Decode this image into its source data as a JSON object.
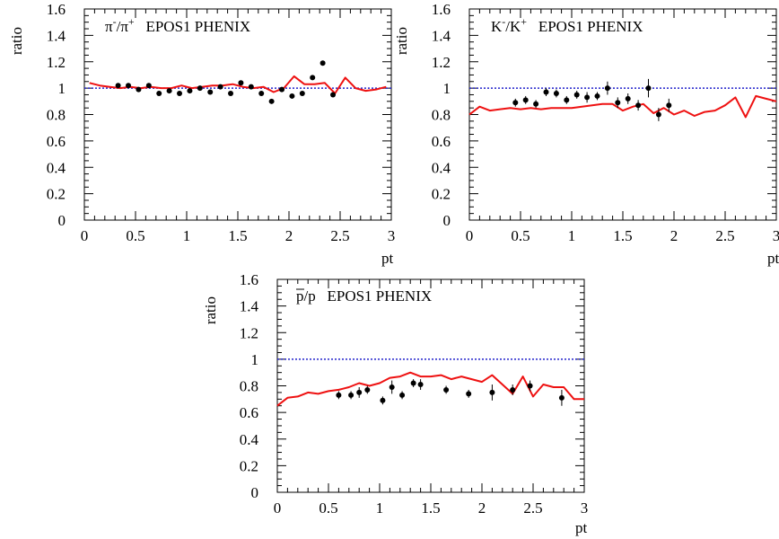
{
  "chart_data": [
    {
      "type": "line",
      "title": "π⁻/π⁺  EPOS1  PHENIX",
      "title_parts": {
        "num_base": "π",
        "num_sup": "-",
        "slash": "/",
        "den_base": "π",
        "den_sup": "+",
        "label": "EPOS1  PHENIX"
      },
      "xlabel": "pt",
      "ylabel": "ratio",
      "xlim": [
        0,
        3
      ],
      "ylim": [
        0,
        1.6
      ],
      "x_ticks": [
        "0",
        "0.5",
        "1",
        "1.5",
        "2",
        "2.5",
        "3"
      ],
      "y_ticks": [
        "0",
        "0.2",
        "0.4",
        "0.6",
        "0.8",
        "1",
        "1.2",
        "1.4",
        "1.6"
      ],
      "reference_line": 1,
      "series": [
        {
          "kind": "line",
          "color": "#ee1111",
          "x": [
            0.05,
            0.15,
            0.25,
            0.35,
            0.45,
            0.55,
            0.65,
            0.75,
            0.85,
            0.95,
            1.05,
            1.15,
            1.25,
            1.35,
            1.45,
            1.55,
            1.65,
            1.75,
            1.85,
            1.95,
            2.05,
            2.15,
            2.25,
            2.35,
            2.45,
            2.55,
            2.65,
            2.75,
            2.85,
            2.95
          ],
          "y": [
            1.04,
            1.02,
            1.01,
            1.0,
            1.01,
            1.0,
            1.01,
            1.0,
            1.0,
            1.02,
            1.0,
            1.01,
            1.02,
            1.02,
            1.03,
            1.01,
            1.0,
            1.01,
            0.97,
            1.0,
            1.09,
            1.03,
            1.03,
            1.04,
            0.96,
            1.08,
            1.0,
            0.98,
            0.99,
            1.01
          ]
        },
        {
          "kind": "points",
          "color": "#000000",
          "x": [
            0.33,
            0.43,
            0.53,
            0.63,
            0.73,
            0.83,
            0.93,
            1.03,
            1.13,
            1.23,
            1.33,
            1.43,
            1.53,
            1.63,
            1.73,
            1.83,
            1.93,
            2.03,
            2.13,
            2.23,
            2.33,
            2.43
          ],
          "y": [
            1.02,
            1.02,
            0.99,
            1.02,
            0.96,
            0.98,
            0.96,
            0.98,
            1.0,
            0.97,
            1.01,
            0.96,
            1.04,
            1.01,
            0.96,
            0.9,
            0.99,
            0.94,
            0.96,
            1.08,
            1.19,
            0.95
          ],
          "err": [
            0.01,
            0.01,
            0.01,
            0.01,
            0.01,
            0.01,
            0.01,
            0.01,
            0.01,
            0.01,
            0.01,
            0.01,
            0.01,
            0.01,
            0.01,
            0.01,
            0.01,
            0.01,
            0.01,
            0.01,
            0.01,
            0.01
          ]
        }
      ]
    },
    {
      "type": "line",
      "title": "K⁻/K⁺  EPOS1  PHENIX",
      "title_parts": {
        "num_base": "K",
        "num_sup": "-",
        "slash": "/",
        "den_base": "K",
        "den_sup": "+",
        "label": "EPOS1  PHENIX"
      },
      "xlabel": "pt",
      "ylabel": "ratio",
      "xlim": [
        0,
        3
      ],
      "ylim": [
        0,
        1.6
      ],
      "x_ticks": [
        "0",
        "0.5",
        "1",
        "1.5",
        "2",
        "2.5",
        "3"
      ],
      "y_ticks": [
        "0",
        "0.2",
        "0.4",
        "0.6",
        "0.8",
        "1",
        "1.2",
        "1.4",
        "1.6"
      ],
      "reference_line": 1,
      "series": [
        {
          "kind": "line",
          "color": "#ee1111",
          "x": [
            0.0,
            0.1,
            0.2,
            0.3,
            0.4,
            0.5,
            0.6,
            0.7,
            0.8,
            0.9,
            1.0,
            1.1,
            1.2,
            1.3,
            1.4,
            1.5,
            1.6,
            1.7,
            1.8,
            1.9,
            2.0,
            2.1,
            2.2,
            2.3,
            2.4,
            2.5,
            2.6,
            2.7,
            2.8,
            2.9,
            3.0
          ],
          "y": [
            0.8,
            0.86,
            0.83,
            0.84,
            0.85,
            0.84,
            0.85,
            0.84,
            0.85,
            0.85,
            0.85,
            0.86,
            0.87,
            0.88,
            0.88,
            0.83,
            0.86,
            0.88,
            0.81,
            0.85,
            0.8,
            0.83,
            0.79,
            0.82,
            0.83,
            0.87,
            0.93,
            0.78,
            0.94,
            0.92,
            0.9
          ]
        },
        {
          "kind": "points",
          "color": "#000000",
          "x": [
            0.45,
            0.55,
            0.65,
            0.75,
            0.85,
            0.95,
            1.05,
            1.15,
            1.25,
            1.35,
            1.45,
            1.55,
            1.65,
            1.75,
            1.85,
            1.95
          ],
          "y": [
            0.89,
            0.91,
            0.88,
            0.97,
            0.96,
            0.91,
            0.95,
            0.93,
            0.94,
            1.0,
            0.89,
            0.92,
            0.87,
            1.0,
            0.8,
            0.87
          ],
          "err": [
            0.03,
            0.03,
            0.03,
            0.03,
            0.03,
            0.03,
            0.03,
            0.04,
            0.03,
            0.05,
            0.04,
            0.04,
            0.04,
            0.07,
            0.05,
            0.05
          ]
        }
      ]
    },
    {
      "type": "line",
      "title": "p̄/p  EPOS1  PHENIX",
      "title_parts": {
        "num_base": "p",
        "num_bar": true,
        "slash": "/",
        "den_base": "p",
        "label": "EPOS1  PHENIX"
      },
      "xlabel": "pt",
      "ylabel": "ratio",
      "xlim": [
        0,
        3
      ],
      "ylim": [
        0,
        1.6
      ],
      "x_ticks": [
        "0",
        "0.5",
        "1",
        "1.5",
        "2",
        "2.5",
        "3"
      ],
      "y_ticks": [
        "0",
        "0.2",
        "0.4",
        "0.6",
        "0.8",
        "1",
        "1.2",
        "1.4",
        "1.6"
      ],
      "reference_line": 1,
      "series": [
        {
          "kind": "line",
          "color": "#ee1111",
          "x": [
            0.0,
            0.1,
            0.2,
            0.3,
            0.4,
            0.5,
            0.6,
            0.7,
            0.8,
            0.9,
            1.0,
            1.1,
            1.2,
            1.3,
            1.4,
            1.5,
            1.6,
            1.7,
            1.8,
            1.9,
            2.0,
            2.1,
            2.2,
            2.3,
            2.4,
            2.5,
            2.6,
            2.7,
            2.8,
            2.9,
            3.0
          ],
          "y": [
            0.65,
            0.71,
            0.72,
            0.75,
            0.74,
            0.76,
            0.77,
            0.79,
            0.82,
            0.8,
            0.82,
            0.86,
            0.87,
            0.9,
            0.87,
            0.87,
            0.88,
            0.85,
            0.87,
            0.85,
            0.83,
            0.88,
            0.81,
            0.74,
            0.87,
            0.72,
            0.81,
            0.79,
            0.79,
            0.7,
            0.7
          ]
        },
        {
          "kind": "points",
          "color": "#000000",
          "x": [
            0.6,
            0.72,
            0.8,
            0.88,
            1.03,
            1.12,
            1.22,
            1.33,
            1.4,
            1.65,
            1.87,
            2.1,
            2.3,
            2.47,
            2.78
          ],
          "y": [
            0.73,
            0.73,
            0.75,
            0.77,
            0.69,
            0.79,
            0.73,
            0.82,
            0.81,
            0.77,
            0.74,
            0.75,
            0.77,
            0.8,
            0.71
          ],
          "err": [
            0.03,
            0.03,
            0.04,
            0.03,
            0.03,
            0.05,
            0.03,
            0.03,
            0.04,
            0.03,
            0.03,
            0.06,
            0.04,
            0.04,
            0.06
          ]
        }
      ]
    }
  ],
  "colors": {
    "model": "#ee1111",
    "data": "#000000",
    "reference": "#2222cc"
  }
}
